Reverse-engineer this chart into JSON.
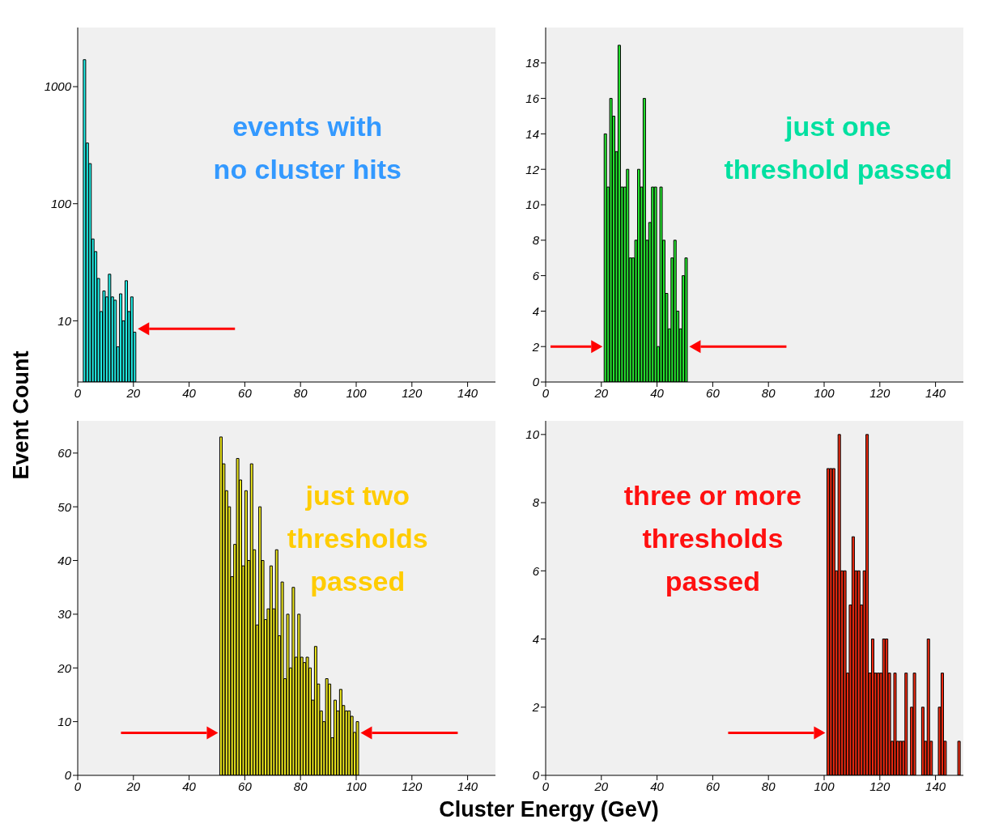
{
  "chart_data": [
    {
      "type": "histogram",
      "ylabel": "Event Count",
      "log": true,
      "color": "#22f0e8",
      "xlim": [
        0,
        150
      ],
      "xticks": [
        0,
        20,
        40,
        60,
        80,
        100,
        120,
        140
      ],
      "ylim": [
        3,
        3200
      ],
      "yticks": [
        10,
        100,
        1000
      ],
      "annotations": [
        "events with",
        "no cluster hits"
      ],
      "bins": [
        2,
        3,
        4,
        5,
        6,
        7,
        8,
        9,
        10,
        11,
        12,
        13,
        14,
        15,
        16,
        17,
        18,
        19,
        20,
        21
      ],
      "values": [
        1700,
        330,
        220,
        50,
        39,
        23,
        12,
        18,
        16,
        25,
        16,
        15,
        6,
        17,
        10,
        22,
        12,
        16,
        8
      ]
    },
    {
      "type": "histogram",
      "color": "#26e830",
      "xlim": [
        0,
        150
      ],
      "xticks": [
        0,
        20,
        40,
        60,
        80,
        100,
        120,
        140
      ],
      "ylim": [
        0,
        20
      ],
      "yticks": [
        0,
        2,
        4,
        6,
        8,
        10,
        12,
        14,
        16,
        18
      ],
      "annotations": [
        "just one",
        "threshold passed"
      ],
      "bins": [
        21,
        22,
        23,
        24,
        25,
        26,
        27,
        28,
        29,
        30,
        31,
        32,
        33,
        34,
        35,
        36,
        37,
        38,
        39,
        40,
        41,
        42,
        43,
        44,
        45,
        46,
        47,
        48,
        49,
        50,
        51
      ],
      "values": [
        14,
        11,
        16,
        15,
        13,
        19,
        11,
        11,
        12,
        7,
        7,
        8,
        12,
        11,
        16,
        8,
        9,
        11,
        11,
        2,
        11,
        8,
        5,
        3,
        7,
        8,
        4,
        3,
        6,
        7
      ]
    },
    {
      "type": "histogram",
      "xlabel": "Cluster Energy (GeV)",
      "color": "#eee81e",
      "xlim": [
        0,
        150
      ],
      "xticks": [
        0,
        20,
        40,
        60,
        80,
        100,
        120,
        140
      ],
      "ylim": [
        0,
        66
      ],
      "yticks": [
        0,
        10,
        20,
        30,
        40,
        50,
        60
      ],
      "annotations": [
        "just two",
        "thresholds",
        "passed"
      ],
      "bins": [
        51,
        52,
        53,
        54,
        55,
        56,
        57,
        58,
        59,
        60,
        61,
        62,
        63,
        64,
        65,
        66,
        67,
        68,
        69,
        70,
        71,
        72,
        73,
        74,
        75,
        76,
        77,
        78,
        79,
        80,
        81,
        82,
        83,
        84,
        85,
        86,
        87,
        88,
        89,
        90,
        91,
        92,
        93,
        94,
        95,
        96,
        97,
        98,
        99,
        100,
        101
      ],
      "values": [
        63,
        58,
        53,
        50,
        37,
        43,
        59,
        55,
        39,
        53,
        40,
        58,
        42,
        28,
        50,
        40,
        29,
        31,
        39,
        31,
        42,
        26,
        36,
        18,
        30,
        20,
        35,
        22,
        30,
        22,
        21,
        22,
        20,
        14,
        24,
        17,
        12,
        10,
        18,
        17,
        7,
        14,
        12,
        16,
        13,
        12,
        12,
        11,
        8,
        10
      ]
    },
    {
      "type": "histogram",
      "color": "#f02a10",
      "xlim": [
        0,
        150
      ],
      "xticks": [
        0,
        20,
        40,
        60,
        80,
        100,
        120,
        140
      ],
      "ylim": [
        0,
        10.4
      ],
      "yticks": [
        0,
        2,
        4,
        6,
        8,
        10
      ],
      "annotations": [
        "three or more",
        "thresholds",
        "passed"
      ],
      "bins": [
        101,
        102,
        103,
        104,
        105,
        106,
        107,
        108,
        109,
        110,
        111,
        112,
        113,
        114,
        115,
        116,
        117,
        118,
        119,
        120,
        121,
        122,
        123,
        124,
        125,
        126,
        127,
        128,
        129,
        130,
        131,
        132,
        133,
        134,
        135,
        136,
        137,
        138,
        139,
        140,
        141,
        142,
        143,
        144,
        145,
        146,
        147,
        148,
        149
      ],
      "values": [
        9,
        9,
        9,
        6,
        10,
        6,
        6,
        3,
        5,
        7,
        6,
        6,
        5,
        6,
        10,
        3,
        4,
        3,
        3,
        3,
        4,
        4,
        3,
        1,
        3,
        1,
        1,
        1,
        3,
        0,
        2,
        3,
        0,
        0,
        2,
        1,
        4,
        1,
        0,
        0,
        2,
        3,
        1,
        0,
        0,
        0,
        0,
        1
      ]
    }
  ]
}
